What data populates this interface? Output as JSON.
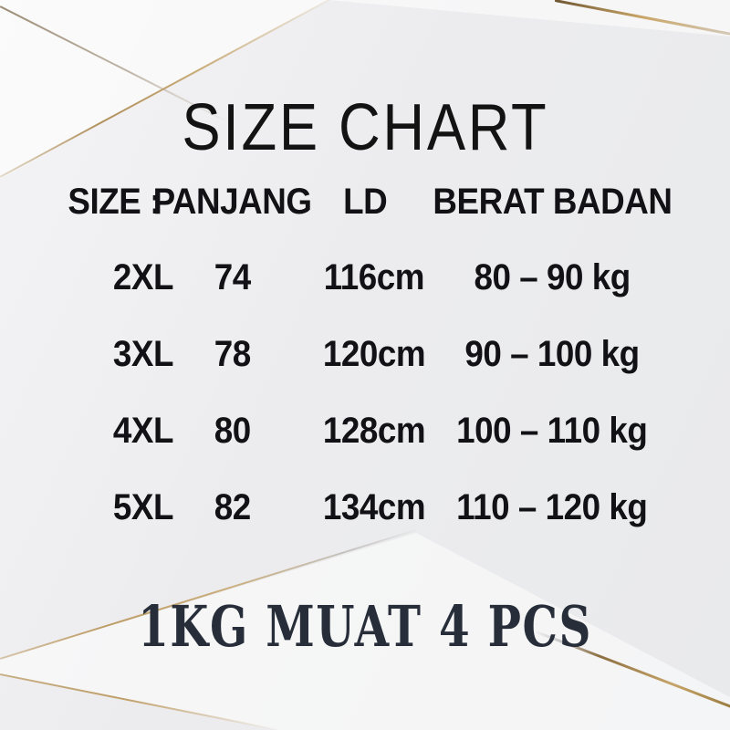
{
  "chart_data": {
    "type": "table",
    "title": "SIZE CHART",
    "columns": [
      "SIZE :",
      "PANJANG",
      "LD",
      "BERAT BADAN"
    ],
    "rows": [
      [
        "2XL",
        "74",
        "116cm",
        "80 – 90 kg"
      ],
      [
        "3XL",
        "78",
        "120cm",
        "90 – 100 kg"
      ],
      [
        "4XL",
        "80",
        "128cm",
        "100 – 110 kg"
      ],
      [
        "5XL",
        "82",
        "134cm",
        "110 – 120 kg"
      ]
    ],
    "note": "1KG MUAT 4 PCS",
    "layout_hints": {
      "grid": "off",
      "header_position": "top",
      "note_position": "bottom-center"
    }
  },
  "colors": {
    "background": "#edeef0",
    "table_text": "#121216",
    "note_text": "#272e3a",
    "gold_line": "#b9975f"
  }
}
